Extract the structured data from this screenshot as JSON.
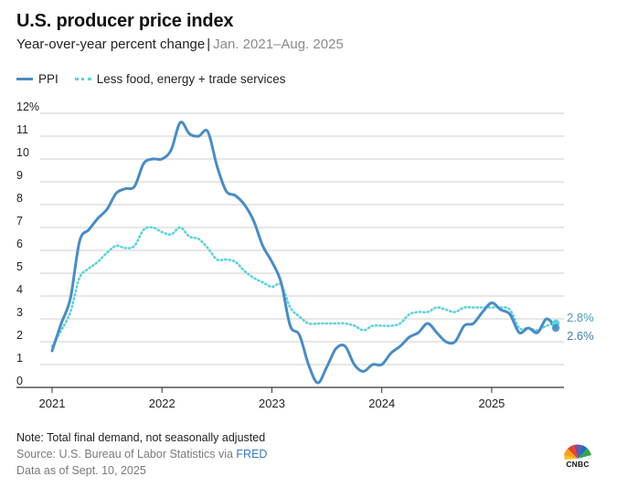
{
  "header": {
    "title": "U.S. producer price index",
    "subtitle_main": "Year-over-year percent change",
    "subtitle_separator": "|",
    "subtitle_range": "Jan. 2021–Aug. 2025"
  },
  "colors": {
    "ppi": "#4a8cc2",
    "core": "#5ed1dc",
    "grid": "#cfcfcf",
    "axis": "#333333"
  },
  "chart_data": {
    "type": "line",
    "title": "U.S. producer price index",
    "xlabel": "",
    "ylabel": "",
    "ylim": [
      0,
      12
    ],
    "yticks": [
      "0",
      "1",
      "2",
      "3",
      "4",
      "5",
      "6",
      "7",
      "8",
      "9",
      "10",
      "11",
      "12%"
    ],
    "xticks": [
      "2021",
      "2022",
      "2023",
      "2024",
      "2025"
    ],
    "x_start": "2021-01",
    "legend": "top-left",
    "series": [
      {
        "name": "PPI",
        "style": "solid",
        "end_label": "2.6%",
        "values": [
          1.6,
          2.8,
          3.9,
          6.4,
          6.9,
          7.4,
          7.8,
          8.5,
          8.7,
          8.8,
          9.8,
          10.0,
          10.0,
          10.4,
          11.6,
          11.1,
          11.0,
          11.2,
          9.7,
          8.6,
          8.4,
          8.0,
          7.3,
          6.2,
          5.5,
          4.6,
          2.7,
          2.3,
          1.0,
          0.2,
          0.9,
          1.7,
          1.8,
          1.0,
          0.7,
          1.0,
          1.0,
          1.5,
          1.8,
          2.2,
          2.4,
          2.8,
          2.4,
          2.0,
          2.0,
          2.7,
          2.8,
          3.3,
          3.7,
          3.4,
          3.2,
          2.4,
          2.6,
          2.4,
          3.0,
          2.6
        ]
      },
      {
        "name": "Less food, energy + trade services",
        "style": "dotted",
        "end_label": "2.8%",
        "values": [
          1.8,
          2.5,
          3.3,
          4.8,
          5.2,
          5.5,
          5.9,
          6.2,
          6.1,
          6.2,
          6.9,
          7.0,
          6.8,
          6.7,
          7.0,
          6.6,
          6.5,
          6.1,
          5.6,
          5.6,
          5.5,
          5.1,
          4.8,
          4.6,
          4.4,
          4.5,
          3.5,
          3.1,
          2.8,
          2.8,
          2.8,
          2.8,
          2.8,
          2.7,
          2.5,
          2.7,
          2.7,
          2.7,
          2.8,
          3.2,
          3.3,
          3.3,
          3.5,
          3.4,
          3.3,
          3.5,
          3.5,
          3.5,
          3.5,
          3.5,
          3.4,
          2.6,
          2.6,
          2.5,
          2.7,
          2.8
        ]
      }
    ]
  },
  "footer": {
    "note": "Note: Total final demand, not seasonally adjusted",
    "source_prefix": "Source: U.S. Bureau of Labor Statistics via",
    "source_link": "FRED",
    "as_of": "Data as of Sept. 10, 2025"
  },
  "logo": {
    "text": "CNBC"
  }
}
